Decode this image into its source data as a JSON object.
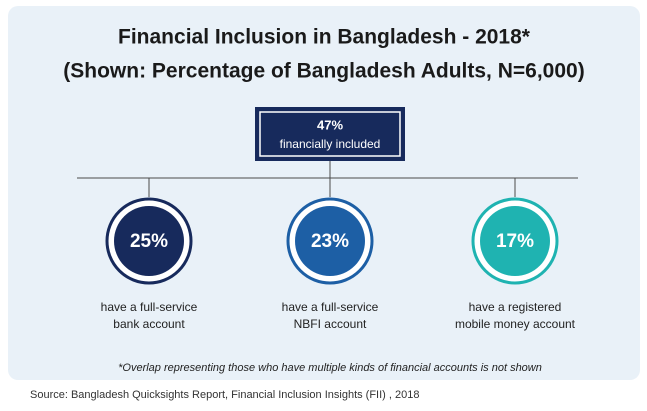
{
  "header": {
    "title": "Financial Inclusion in Bangladesh - 2018*",
    "subtitle": "(Shown: Percentage of Bangladesh Adults, N=6,000)"
  },
  "root": {
    "value": "47%",
    "label": "financially included"
  },
  "nodes": [
    {
      "value": "25%",
      "label_lines": [
        "have a full-service",
        "bank account"
      ],
      "color": "#172a5c"
    },
    {
      "value": "23%",
      "label_lines": [
        "have a full-service",
        "NBFI account"
      ],
      "color": "#1d5fa5"
    },
    {
      "value": "17%",
      "label_lines": [
        "have a registered",
        "mobile money account"
      ],
      "color": "#1fb3b1"
    }
  ],
  "footnote": "*Overlap representing those who have multiple kinds of financial accounts is not shown",
  "source": "Source: Bangladesh Quicksights Report, Financial Inclusion Insights (FII) , 2018"
}
